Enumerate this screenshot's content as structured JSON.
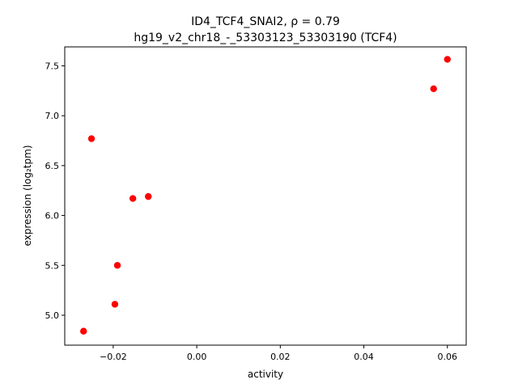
{
  "chart_data": {
    "type": "scatter",
    "title_line1": "ID4_TCF4_SNAI2, ρ = 0.79",
    "title_line2": "hg19_v2_chr18_-_53303123_53303190 (TCF4)",
    "xlabel": "activity",
    "ylabel": "expression (log₂tpm)",
    "xlim": [
      -0.0316,
      0.0645
    ],
    "ylim": [
      4.7,
      7.69
    ],
    "xticks": [
      -0.02,
      0.0,
      0.02,
      0.04,
      0.06
    ],
    "xtick_labels": [
      "−0.02",
      "0.00",
      "0.02",
      "0.04",
      "0.06"
    ],
    "yticks": [
      5.0,
      5.5,
      6.0,
      6.5,
      7.0,
      7.5
    ],
    "ytick_labels": [
      "5.0",
      "5.5",
      "6.0",
      "6.5",
      "7.0",
      "7.5"
    ],
    "grid": false,
    "marker_color": "#ff0000",
    "points": [
      {
        "x": -0.0271,
        "y": 4.84
      },
      {
        "x": -0.0252,
        "y": 6.77
      },
      {
        "x": -0.0196,
        "y": 5.11
      },
      {
        "x": -0.019,
        "y": 5.5
      },
      {
        "x": -0.0153,
        "y": 6.17
      },
      {
        "x": -0.0116,
        "y": 6.19
      },
      {
        "x": 0.0567,
        "y": 7.27
      },
      {
        "x": 0.06,
        "y": 7.565
      }
    ]
  }
}
